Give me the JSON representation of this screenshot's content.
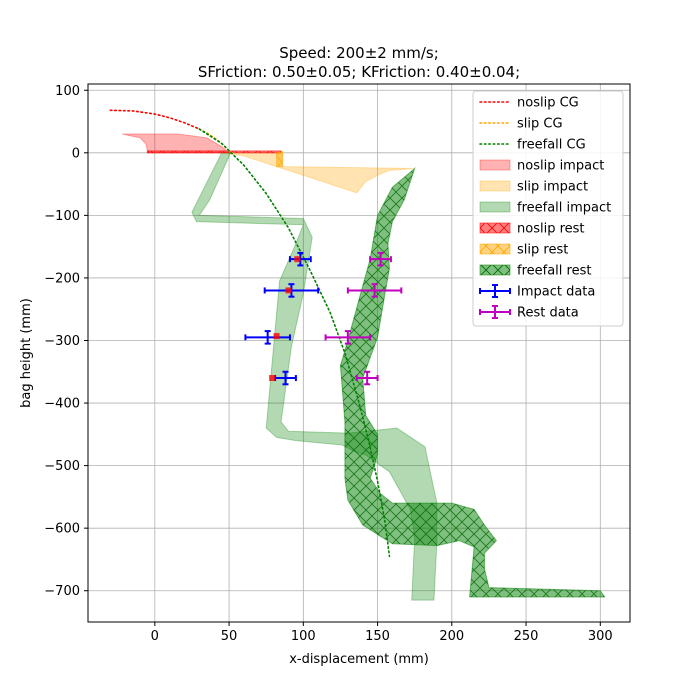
{
  "chart_data": {
    "type": "line",
    "title_line1": "Speed: 200±2 mm/s;",
    "title_line2": "SFriction: 0.50±0.05; KFriction: 0.40±0.04;",
    "xlabel": "x-displacement (mm)",
    "ylabel": "bag height (mm)",
    "xlim": [
      -45,
      320
    ],
    "ylim": [
      -750,
      110
    ],
    "xticks": [
      0,
      50,
      100,
      150,
      200,
      250,
      300
    ],
    "yticks": [
      100,
      0,
      -100,
      -200,
      -300,
      -400,
      -500,
      -600,
      -700
    ],
    "xtick_labels": [
      "0",
      "50",
      "100",
      "150",
      "200",
      "250",
      "300"
    ],
    "ytick_labels": [
      "100",
      "0",
      "−100",
      "−200",
      "−300",
      "−400",
      "−500",
      "−600",
      "−700"
    ],
    "grid": true,
    "legend_position": "top-right",
    "colors": {
      "noslip": "#ff0000",
      "slip": "#ffa500",
      "freefall": "#008000",
      "impact_data": "#0000ff",
      "rest_data": "#bf00bf"
    },
    "cg_lines": [
      {
        "name": "noslip CG",
        "color": "#ff0000",
        "x": [
          -30,
          -15,
          0,
          10,
          20,
          30
        ],
        "y": [
          68,
          67,
          62,
          56,
          48,
          38
        ]
      },
      {
        "name": "slip CG",
        "color": "#ffa500",
        "x": [
          30,
          35,
          40,
          45,
          48,
          50,
          52
        ],
        "y": [
          38,
          32,
          24,
          15,
          8,
          3,
          0
        ]
      },
      {
        "name": "freefall CG",
        "color": "#008000",
        "x": [
          30,
          45,
          60,
          75,
          90,
          105,
          118,
          128,
          137,
          144,
          150,
          155,
          158
        ],
        "y": [
          38,
          15,
          -20,
          -65,
          -120,
          -190,
          -255,
          -320,
          -395,
          -460,
          -525,
          -590,
          -645
        ]
      }
    ],
    "bands": [
      {
        "name": "noslip impact",
        "color": "#ff0000",
        "alpha": 0.3,
        "hatch": false,
        "polygon": [
          [
            -22,
            30
          ],
          [
            15,
            30
          ],
          [
            22,
            28
          ],
          [
            35,
            24
          ],
          [
            45,
            10
          ],
          [
            50,
            0
          ],
          [
            -5,
            0
          ],
          [
            -5,
            3
          ],
          [
            -6,
            14
          ],
          [
            -10,
            24
          ]
        ]
      },
      {
        "name": "slip impact",
        "color": "#ffa500",
        "alpha": 0.3,
        "hatch": false,
        "polygon": [
          [
            47,
            0
          ],
          [
            85,
            0
          ],
          [
            86,
            2
          ],
          [
            86,
            -22
          ],
          [
            175,
            -25
          ],
          [
            158,
            -28
          ],
          [
            150,
            -36
          ],
          [
            142,
            -46
          ],
          [
            136,
            -64
          ],
          [
            60,
            -5
          ],
          [
            47,
            0
          ]
        ]
      },
      {
        "name": "freefall impact",
        "color": "#008000",
        "alpha": 0.3,
        "hatch": false,
        "polygon": [
          [
            51,
            0
          ],
          [
            45,
            0
          ],
          [
            25,
            -95
          ],
          [
            28,
            -110
          ],
          [
            100,
            -115
          ],
          [
            95,
            -145
          ],
          [
            84,
            -205
          ],
          [
            75,
            -440
          ],
          [
            82,
            -455
          ],
          [
            95,
            -460
          ],
          [
            126,
            -467
          ],
          [
            135,
            -478
          ],
          [
            142,
            -483
          ],
          [
            158,
            -510
          ],
          [
            172,
            -570
          ],
          [
            175,
            -615
          ],
          [
            173,
            -715
          ],
          [
            188,
            -715
          ],
          [
            190,
            -620
          ],
          [
            190,
            -560
          ],
          [
            185,
            -505
          ],
          [
            182,
            -470
          ],
          [
            163,
            -440
          ],
          [
            130,
            -448
          ],
          [
            90,
            -445
          ],
          [
            85,
            -430
          ],
          [
            92,
            -310
          ],
          [
            100,
            -225
          ],
          [
            106,
            -135
          ],
          [
            100,
            -105
          ],
          [
            30,
            -100
          ],
          [
            37,
            -75
          ]
        ]
      },
      {
        "name": "noslip rest",
        "color": "#ff0000",
        "alpha": 0.5,
        "hatch": true,
        "polygon": [
          [
            -5,
            0
          ],
          [
            50,
            0
          ],
          [
            85,
            0
          ],
          [
            85,
            3
          ],
          [
            -5,
            3
          ]
        ]
      },
      {
        "name": "slip rest",
        "color": "#ffa500",
        "alpha": 0.5,
        "hatch": true,
        "polygon": [
          [
            82,
            0
          ],
          [
            86,
            2
          ],
          [
            86,
            -22
          ],
          [
            82,
            -22
          ]
        ]
      },
      {
        "name": "freefall rest",
        "color": "#008000",
        "alpha": 0.5,
        "hatch": true,
        "polygon": [
          [
            175,
            -25
          ],
          [
            160,
            -55
          ],
          [
            150,
            -100
          ],
          [
            145,
            -170
          ],
          [
            138,
            -230
          ],
          [
            130,
            -300
          ],
          [
            125,
            -340
          ],
          [
            128,
            -430
          ],
          [
            128,
            -520
          ],
          [
            130,
            -555
          ],
          [
            140,
            -595
          ],
          [
            160,
            -625
          ],
          [
            190,
            -628
          ],
          [
            205,
            -620
          ],
          [
            210,
            -625
          ],
          [
            215,
            -630
          ],
          [
            212,
            -710
          ],
          [
            303,
            -710
          ],
          [
            300,
            -700
          ],
          [
            225,
            -695
          ],
          [
            222,
            -665
          ],
          [
            222,
            -640
          ],
          [
            230,
            -620
          ],
          [
            222,
            -595
          ],
          [
            215,
            -570
          ],
          [
            200,
            -560
          ],
          [
            160,
            -560
          ],
          [
            152,
            -545
          ],
          [
            145,
            -520
          ],
          [
            148,
            -500
          ],
          [
            150,
            -480
          ],
          [
            150,
            -450
          ],
          [
            142,
            -420
          ],
          [
            140,
            -360
          ],
          [
            150,
            -295
          ],
          [
            155,
            -225
          ],
          [
            158,
            -185
          ],
          [
            157,
            -145
          ],
          [
            160,
            -110
          ],
          [
            168,
            -75
          ],
          [
            175,
            -25
          ]
        ]
      }
    ],
    "impact_data": {
      "name": "Impact data",
      "color": "#0000ff",
      "points": [
        {
          "x": 98,
          "y": -170,
          "xerr": 7,
          "yerr": 10
        },
        {
          "x": 92,
          "y": -220,
          "xerr": 18,
          "yerr": 10
        },
        {
          "x": 76,
          "y": -295,
          "xerr": 15,
          "yerr": 10
        },
        {
          "x": 88,
          "y": -360,
          "xerr": 7,
          "yerr": 10
        }
      ]
    },
    "rest_data": {
      "name": "Rest data",
      "color": "#bf00bf",
      "points": [
        {
          "x": 152,
          "y": -170,
          "xerr": 7,
          "yerr": 10
        },
        {
          "x": 148,
          "y": -220,
          "xerr": 18,
          "yerr": 10
        },
        {
          "x": 130,
          "y": -295,
          "xerr": 15,
          "yerr": 10
        },
        {
          "x": 143,
          "y": -360,
          "xerr": 7,
          "yerr": 10
        }
      ]
    },
    "red_markers": [
      {
        "x": 96,
        "y": -170
      },
      {
        "x": 90,
        "y": -220
      },
      {
        "x": 82,
        "y": -293
      },
      {
        "x": 79,
        "y": -360
      }
    ],
    "legend_entries": [
      {
        "label": "noslip CG",
        "kind": "dotted",
        "color": "#ff0000"
      },
      {
        "label": "slip CG",
        "kind": "dotted",
        "color": "#ffa500"
      },
      {
        "label": "freefall CG",
        "kind": "dotted",
        "color": "#008000"
      },
      {
        "label": "noslip impact",
        "kind": "patch",
        "color": "#ff0000",
        "alpha": 0.3,
        "hatch": false
      },
      {
        "label": "slip impact",
        "kind": "patch",
        "color": "#ffa500",
        "alpha": 0.3,
        "hatch": false
      },
      {
        "label": "freefall impact",
        "kind": "patch",
        "color": "#008000",
        "alpha": 0.3,
        "hatch": false
      },
      {
        "label": "noslip rest",
        "kind": "patch",
        "color": "#ff0000",
        "alpha": 0.5,
        "hatch": true
      },
      {
        "label": "slip rest",
        "kind": "patch",
        "color": "#ffa500",
        "alpha": 0.5,
        "hatch": true
      },
      {
        "label": "freefall rest",
        "kind": "patch",
        "color": "#008000",
        "alpha": 0.5,
        "hatch": true
      },
      {
        "label": "Impact data",
        "kind": "errorbar",
        "color": "#0000ff"
      },
      {
        "label": "Rest data",
        "kind": "errorbar",
        "color": "#bf00bf"
      }
    ]
  }
}
